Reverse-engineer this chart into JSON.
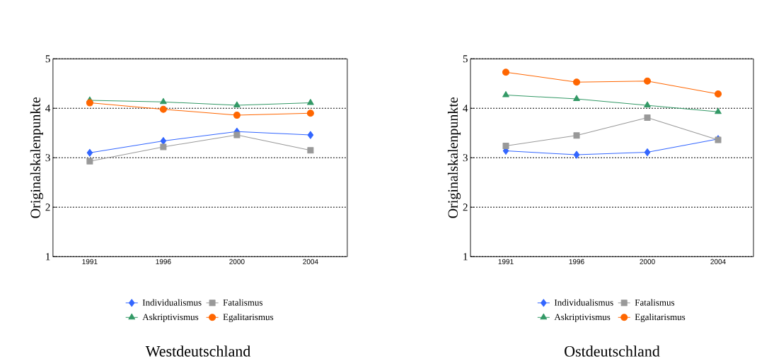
{
  "chart_data": [
    {
      "type": "line",
      "title": "Westdeutschland",
      "ylabel": "Originalskalenpunkte",
      "categories": [
        "1991",
        "1996",
        "2000",
        "2004"
      ],
      "ylim": [
        1,
        5
      ],
      "yticks": [
        1,
        2,
        3,
        4,
        5
      ],
      "grid": "y",
      "legend": "bottom",
      "series": [
        {
          "name": "Individualismus",
          "color": "#3366ff",
          "marker": "diamond",
          "values": [
            3.1,
            3.34,
            3.53,
            3.46
          ]
        },
        {
          "name": "Fatalismus",
          "color": "#999999",
          "marker": "square",
          "values": [
            2.93,
            3.22,
            3.46,
            3.15
          ]
        },
        {
          "name": "Askriptivismus",
          "color": "#339966",
          "marker": "triangle",
          "values": [
            4.16,
            4.13,
            4.06,
            4.11
          ]
        },
        {
          "name": "Egalitarismus",
          "color": "#ff6600",
          "marker": "circle",
          "values": [
            4.11,
            3.98,
            3.86,
            3.9
          ]
        }
      ]
    },
    {
      "type": "line",
      "title": "Ostdeutschland",
      "ylabel": "Originalskalenpunkte",
      "categories": [
        "1991",
        "1996",
        "2000",
        "2004"
      ],
      "ylim": [
        1,
        5
      ],
      "yticks": [
        1,
        2,
        3,
        4,
        5
      ],
      "grid": "y",
      "legend": "bottom",
      "series": [
        {
          "name": "Individualismus",
          "color": "#3366ff",
          "marker": "diamond",
          "values": [
            3.14,
            3.06,
            3.11,
            3.38
          ]
        },
        {
          "name": "Fatalismus",
          "color": "#999999",
          "marker": "square",
          "values": [
            3.24,
            3.45,
            3.81,
            3.36
          ]
        },
        {
          "name": "Askriptivismus",
          "color": "#339966",
          "marker": "triangle",
          "values": [
            4.27,
            4.19,
            4.06,
            3.93
          ]
        },
        {
          "name": "Egalitarismus",
          "color": "#ff6600",
          "marker": "circle",
          "values": [
            4.73,
            4.53,
            4.55,
            4.29
          ]
        }
      ]
    }
  ]
}
